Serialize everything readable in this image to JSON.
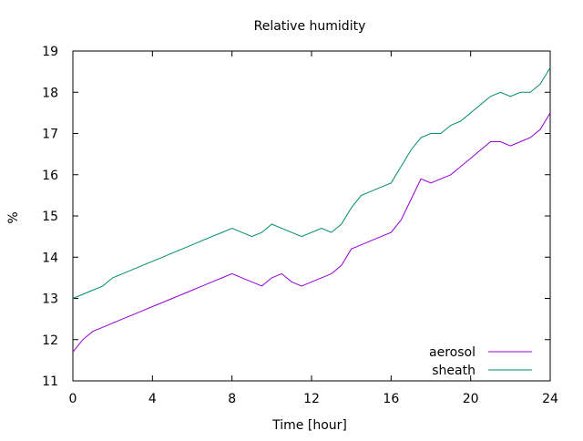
{
  "chart_data": {
    "type": "line",
    "title": "Relative humidity",
    "xlabel": "Time [hour]",
    "ylabel": "%",
    "xlim": [
      0,
      24
    ],
    "ylim": [
      11,
      19
    ],
    "xticks": [
      0,
      4,
      8,
      12,
      16,
      20,
      24
    ],
    "yticks": [
      11,
      12,
      13,
      14,
      15,
      16,
      17,
      18,
      19
    ],
    "grid": false,
    "legend_position": "bottom-right",
    "series": [
      {
        "name": "aerosol",
        "color": "#9400d3",
        "x": [
          0,
          0.5,
          1,
          1.5,
          2,
          2.5,
          3,
          3.5,
          4,
          4.5,
          5,
          5.5,
          6,
          6.5,
          7,
          7.5,
          8,
          8.5,
          9,
          9.5,
          10,
          10.5,
          11,
          11.5,
          12,
          12.5,
          13,
          13.5,
          14,
          14.5,
          15,
          15.5,
          16,
          16.5,
          17,
          17.5,
          18,
          18.5,
          19,
          19.5,
          20,
          20.5,
          21,
          21.5,
          22,
          22.5,
          23,
          23.5,
          24
        ],
        "y": [
          11.7,
          12.0,
          12.2,
          12.3,
          12.4,
          12.5,
          12.6,
          12.7,
          12.8,
          12.9,
          13.0,
          13.1,
          13.2,
          13.3,
          13.4,
          13.5,
          13.6,
          13.5,
          13.4,
          13.3,
          13.5,
          13.6,
          13.4,
          13.3,
          13.4,
          13.5,
          13.6,
          13.8,
          14.2,
          14.3,
          14.4,
          14.5,
          14.6,
          14.9,
          15.4,
          15.9,
          15.8,
          15.9,
          16.0,
          16.2,
          16.4,
          16.6,
          16.8,
          16.8,
          16.7,
          16.8,
          16.9,
          17.1,
          17.5
        ]
      },
      {
        "name": "sheath",
        "color": "#008b6b",
        "x": [
          0,
          0.5,
          1,
          1.5,
          2,
          2.5,
          3,
          3.5,
          4,
          4.5,
          5,
          5.5,
          6,
          6.5,
          7,
          7.5,
          8,
          8.5,
          9,
          9.5,
          10,
          10.5,
          11,
          11.5,
          12,
          12.5,
          13,
          13.5,
          14,
          14.5,
          15,
          15.5,
          16,
          16.5,
          17,
          17.5,
          18,
          18.5,
          19,
          19.5,
          20,
          20.5,
          21,
          21.5,
          22,
          22.5,
          23,
          23.5,
          24
        ],
        "y": [
          13.0,
          13.1,
          13.2,
          13.3,
          13.5,
          13.6,
          13.7,
          13.8,
          13.9,
          14.0,
          14.1,
          14.2,
          14.3,
          14.4,
          14.5,
          14.6,
          14.7,
          14.6,
          14.5,
          14.6,
          14.8,
          14.7,
          14.6,
          14.5,
          14.6,
          14.7,
          14.6,
          14.8,
          15.2,
          15.5,
          15.6,
          15.7,
          15.8,
          16.2,
          16.6,
          16.9,
          17.0,
          17.0,
          17.2,
          17.3,
          17.5,
          17.7,
          17.9,
          18.0,
          17.9,
          18.0,
          18.0,
          18.2,
          18.6
        ]
      }
    ]
  }
}
